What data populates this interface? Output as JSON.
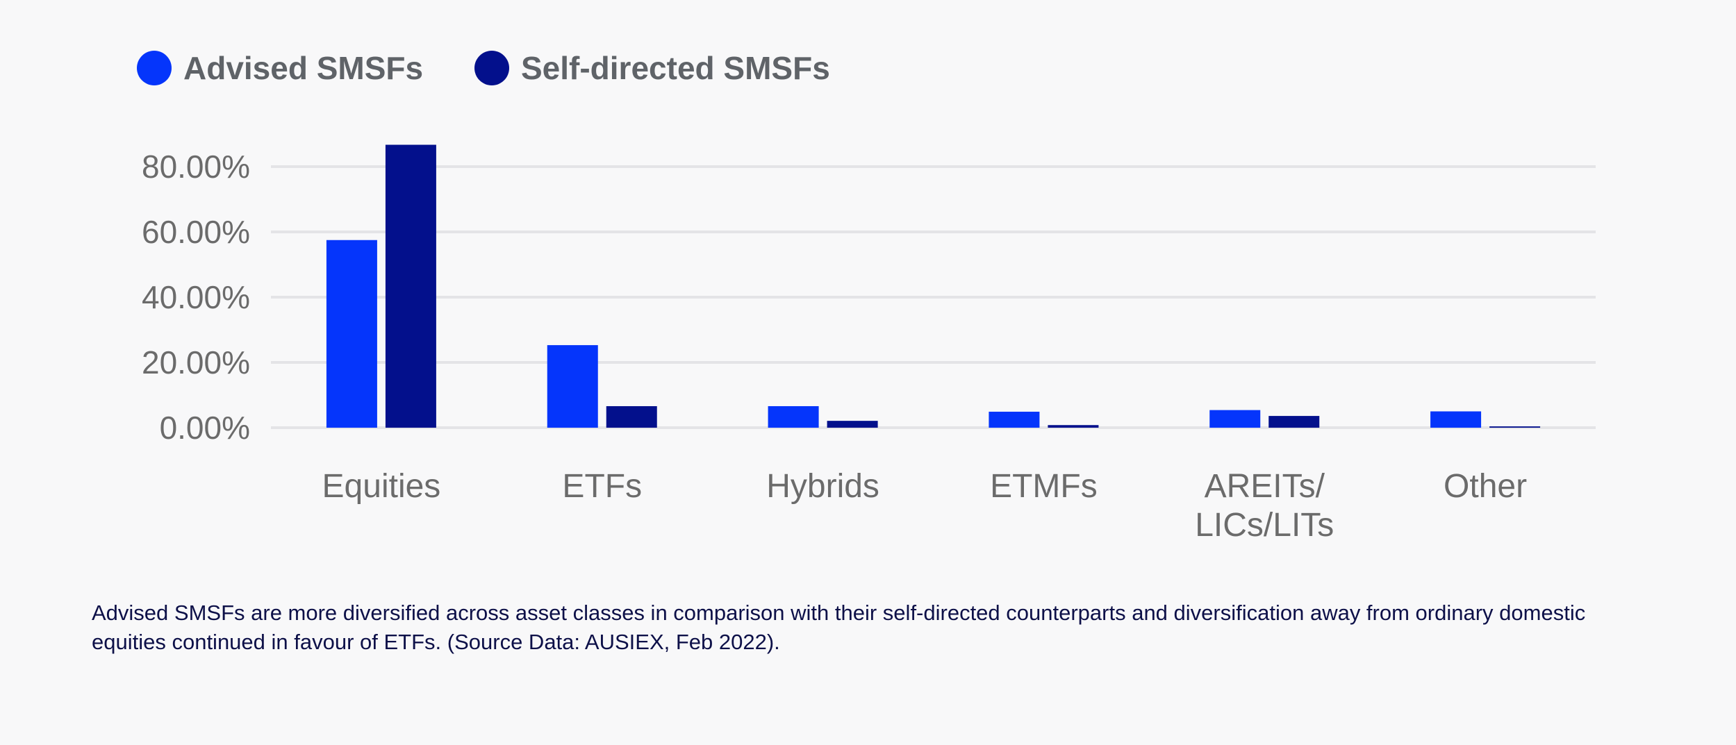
{
  "chart_data": {
    "type": "bar",
    "categories": [
      "Equities",
      "ETFs",
      "Hybrids",
      "ETMFs",
      "AREITs/\nLICs/LITs",
      "Other"
    ],
    "series": [
      {
        "name": "Advised SMSFs",
        "color": "#0535fb",
        "values": [
          57.5,
          25.3,
          6.6,
          4.9,
          5.4,
          5.0
        ]
      },
      {
        "name": "Self-directed SMSFs",
        "color": "#03108c",
        "values": [
          86.7,
          6.6,
          2.1,
          0.8,
          3.6,
          0.4
        ]
      }
    ],
    "ylim": [
      0,
      80
    ],
    "yticks": [
      "0.00%",
      "20.00%",
      "40.00%",
      "60.00%",
      "80.00%"
    ],
    "grid": true,
    "legend_position": "top-left"
  },
  "caption": "Advised SMSFs are more diversified across asset classes in comparison with their self-directed counterparts and diversification away from ordinary domestic equities continued in favour of ETFs. (Source Data: AUSIEX, Feb 2022)."
}
